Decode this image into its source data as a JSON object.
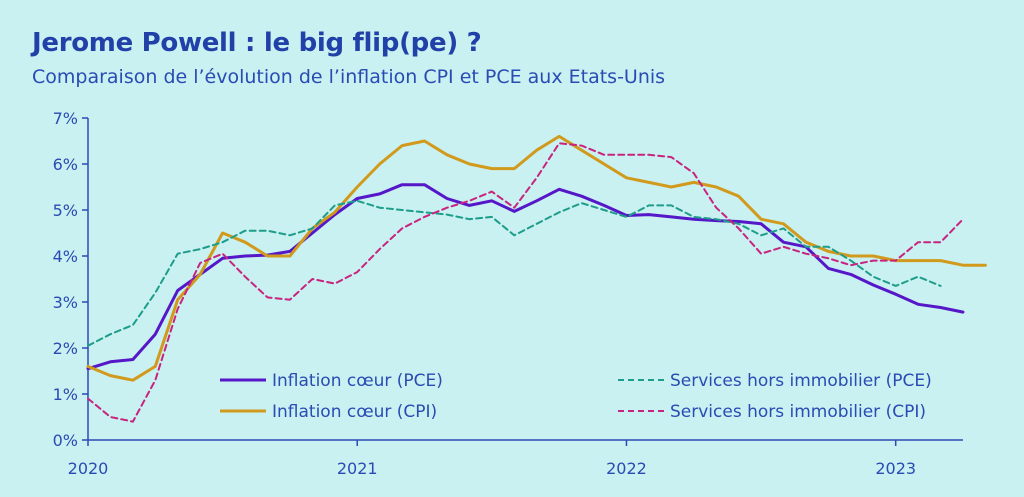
{
  "title": "Jerome Powell : le big flip(pe) ?",
  "subtitle": "Comparaison de l’évolution de l’inflation CPI et PCE aux Etats-Unis",
  "chart_data": {
    "type": "line",
    "x_ticks": [
      "2020",
      "2021",
      "2022",
      "2023"
    ],
    "y_ticks": [
      "0%",
      "1%",
      "2%",
      "3%",
      "4%",
      "5%",
      "6%",
      "7%"
    ],
    "ylim": [
      0,
      7
    ],
    "xlim": [
      "2020-01",
      "2023-04"
    ],
    "grid": false,
    "legend_position": "bottom",
    "series": [
      {
        "name": "Inflation cœur (PCE)",
        "color": "#5517c8",
        "style": "solid",
        "start": "2020-01",
        "values": [
          1.55,
          1.7,
          1.75,
          2.3,
          3.25,
          3.6,
          3.95,
          4.0,
          4.02,
          4.1,
          4.5,
          4.9,
          5.25,
          5.35,
          5.55,
          5.55,
          5.25,
          5.1,
          5.2,
          4.97,
          5.2,
          5.45,
          5.3,
          5.1,
          4.88,
          4.9,
          4.85,
          4.8,
          4.77,
          4.75,
          4.7,
          4.3,
          4.2,
          3.73,
          3.6,
          3.37,
          3.17,
          2.95,
          2.88,
          2.78
        ]
      },
      {
        "name": "Inflation cœur (CPI)",
        "color": "#d19a1d",
        "style": "solid",
        "start": "2020-01",
        "values": [
          1.6,
          1.4,
          1.3,
          1.6,
          3.05,
          3.6,
          4.5,
          4.3,
          4.0,
          4.0,
          4.6,
          4.95,
          5.5,
          6.0,
          6.4,
          6.5,
          6.2,
          6.0,
          5.9,
          5.9,
          6.3,
          6.6,
          6.3,
          6.0,
          5.7,
          5.6,
          5.5,
          5.6,
          5.5,
          5.3,
          4.8,
          4.7,
          4.3,
          4.1,
          4.0,
          4.0,
          3.9,
          3.9,
          3.9,
          3.8,
          3.8
        ]
      },
      {
        "name": "Services hors immobilier (PCE)",
        "color": "#1d9d8a",
        "style": "dashed",
        "start": "2020-01",
        "values": [
          2.05,
          2.3,
          2.5,
          3.2,
          4.05,
          4.15,
          4.3,
          4.55,
          4.55,
          4.45,
          4.6,
          5.1,
          5.2,
          5.05,
          5.0,
          4.95,
          4.9,
          4.8,
          4.85,
          4.45,
          4.7,
          4.95,
          5.15,
          5.0,
          4.85,
          5.1,
          5.1,
          4.85,
          4.8,
          4.7,
          4.45,
          4.6,
          4.2,
          4.2,
          3.9,
          3.55,
          3.35,
          3.55,
          3.35
        ]
      },
      {
        "name": "Services hors immobilier (CPI)",
        "color": "#c8247f",
        "style": "dashed",
        "start": "2020-01",
        "values": [
          0.9,
          0.5,
          0.4,
          1.3,
          2.85,
          3.85,
          4.05,
          3.55,
          3.1,
          3.05,
          3.5,
          3.4,
          3.65,
          4.15,
          4.6,
          4.85,
          5.05,
          5.2,
          5.4,
          5.05,
          5.7,
          6.45,
          6.4,
          6.2,
          6.2,
          6.2,
          6.15,
          5.8,
          5.05,
          4.6,
          4.05,
          4.2,
          4.05,
          3.95,
          3.8,
          3.9,
          3.9,
          4.3,
          4.3,
          4.8
        ]
      }
    ]
  }
}
